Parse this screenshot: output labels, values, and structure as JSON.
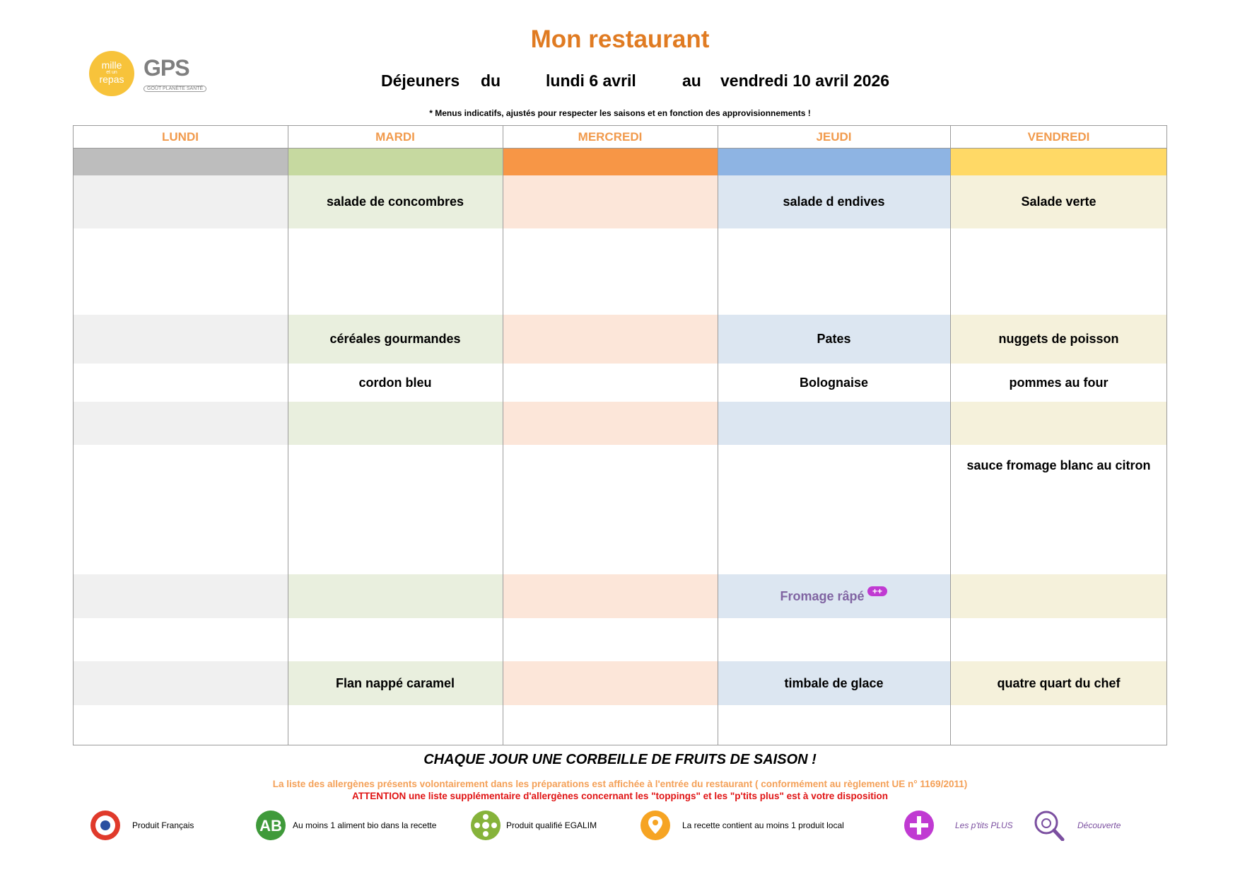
{
  "header": {
    "title": "Mon restaurant",
    "dejeuners": "Déjeuners",
    "du": "du",
    "start_date": "lundi 6 avril",
    "au": "au",
    "end_date": "vendredi 10 avril 2026",
    "note": "* Menus indicatifs, ajustés pour respecter les saisons et en fonction des approvisionnements !"
  },
  "logos": {
    "mille_line1": "mille",
    "mille_line2": "et un",
    "mille_line3": "repas",
    "gps": "GPS",
    "gps_sub": "GOÛT PLANÈTE SANTÉ"
  },
  "days": {
    "lundi": "LUNDI",
    "mardi": "MARDI",
    "mercredi": "MERCREDI",
    "jeudi": "JEUDI",
    "vendredi": "VENDREDI"
  },
  "colors": {
    "lundi": {
      "band": "#bdbdbd",
      "light": "#f0f0f0"
    },
    "mardi": {
      "band": "#c6d9a0",
      "light": "#e9efde"
    },
    "mercredi": {
      "band": "#f79646",
      "light": "#fce6d9"
    },
    "jeudi": {
      "band": "#8eb4e3",
      "light": "#dce6f1"
    },
    "vendredi": {
      "band": "#ffd966",
      "light": "#f5f1db"
    },
    "title": "#e07b22",
    "day_header": "#f19a4c",
    "ptits_plus": "#8064a2"
  },
  "menu": {
    "mardi": {
      "entree": "salade de concombres",
      "feculent": "céréales gourmandes",
      "plat": "cordon bleu",
      "dessert": "Flan nappé caramel"
    },
    "jeudi": {
      "entree": "salade d endives",
      "feculent": "Pates",
      "plat": "Bolognaise",
      "fromage": "Fromage râpé",
      "dessert": "timbale de glace"
    },
    "vendredi": {
      "entree": "Salade verte",
      "feculent": "nuggets de poisson",
      "plat": "pommes au four",
      "sauce": "sauce  fromage blanc au citron",
      "dessert": "quatre quart du chef"
    }
  },
  "footer": {
    "fruits": "CHAQUE JOUR UNE CORBEILLE DE FRUITS DE SAISON !",
    "allergenes": "La liste des allergènes présents volontairement dans les préparations est affichée à l'entrée du restaurant ( conformément au règlement UE n° 1169/2011)",
    "attention": "ATTENTION une liste supplémentaire d'allergènes concernant les \"toppings\" et les \"p'tits plus\" est à votre disposition"
  },
  "legend": {
    "francais": "Produit Français",
    "bio": "Au moins 1 aliment bio dans la recette",
    "bio_icon_text": "AB",
    "egalim": "Produit qualifié EGALIM",
    "local": "La recette contient au moins 1 produit local",
    "ptits_plus": "Les p'tits PLUS",
    "decouverte": "Découverte"
  }
}
